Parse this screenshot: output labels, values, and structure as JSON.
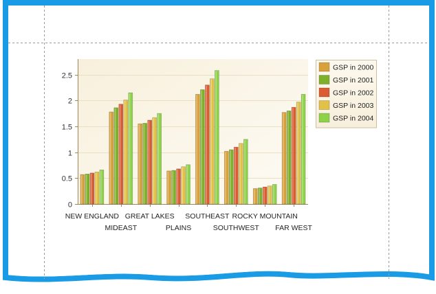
{
  "page": {
    "border_color": "#1a9be6",
    "guide_color": "#9a9a9a"
  },
  "chart_data": {
    "type": "bar",
    "title": "",
    "xlabel": "",
    "ylabel": "",
    "ylim": [
      0,
      2.8
    ],
    "yticks": [
      0,
      0.5,
      1,
      1.5,
      2,
      2.5
    ],
    "ytick_labels": [
      "0",
      "0.5",
      "1",
      "1.5",
      "2",
      "2.5"
    ],
    "categories": [
      "NEW ENGLAND",
      "MIDEAST",
      "GREAT LAKES",
      "PLAINS",
      "SOUTHEAST",
      "SOUTHWEST",
      "ROCKY MOUNTAIN",
      "FAR WEST"
    ],
    "category_label_rows": [
      0,
      1,
      0,
      1,
      0,
      1,
      0,
      1
    ],
    "grid": true,
    "legend_position": "top-right",
    "series": [
      {
        "name": "GSP in 2000",
        "color": "#d9a13c",
        "values": [
          0.57,
          1.78,
          1.55,
          0.64,
          2.12,
          1.02,
          0.3,
          1.77
        ]
      },
      {
        "name": "GSP in 2001",
        "color": "#7fb02a",
        "values": [
          0.58,
          1.86,
          1.56,
          0.65,
          2.21,
          1.05,
          0.31,
          1.8
        ]
      },
      {
        "name": "GSP in 2002",
        "color": "#d95c32",
        "values": [
          0.6,
          1.93,
          1.62,
          0.68,
          2.3,
          1.1,
          0.33,
          1.87
        ]
      },
      {
        "name": "GSP in 2003",
        "color": "#e2c148",
        "values": [
          0.62,
          2.01,
          1.67,
          0.72,
          2.42,
          1.17,
          0.35,
          1.97
        ]
      },
      {
        "name": "GSP in 2004",
        "color": "#8ed24a",
        "values": [
          0.66,
          2.15,
          1.75,
          0.76,
          2.58,
          1.25,
          0.38,
          2.12
        ]
      }
    ]
  }
}
